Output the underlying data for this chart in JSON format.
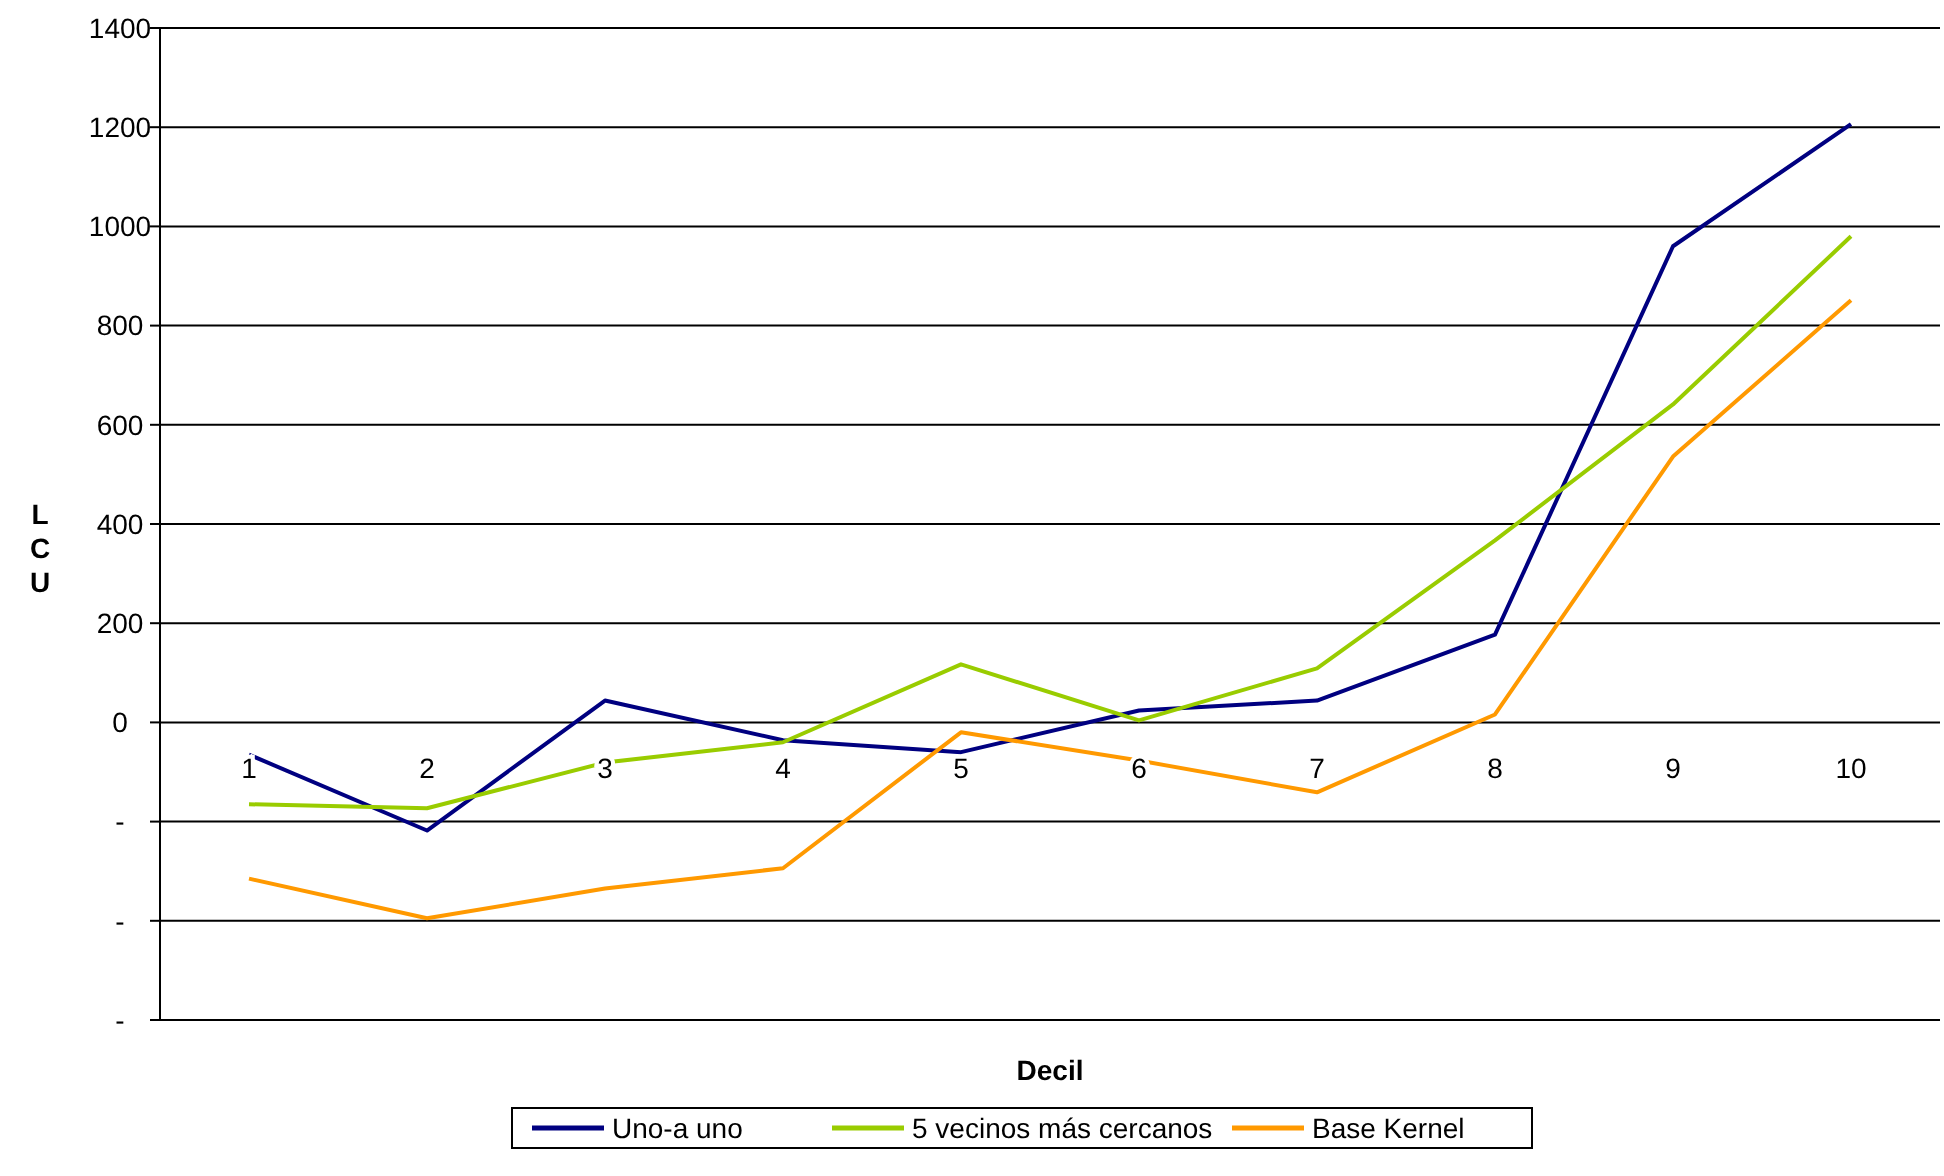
{
  "chart_data": {
    "type": "line",
    "xlabel": "Decil",
    "ylabel": "LCU",
    "categories": [
      "1",
      "2",
      "3",
      "4",
      "5",
      "6",
      "7",
      "8",
      "9",
      "10"
    ],
    "series": [
      {
        "name": "Uno-a uno",
        "color": "#000080",
        "values": [
          -65,
          -218,
          44,
          -36,
          -60,
          24,
          44,
          177,
          960,
          1206
        ]
      },
      {
        "name": "5 vecinos más cercanos",
        "color": "#99cc00",
        "values": [
          -165,
          -173,
          -81,
          -40,
          117,
          4,
          109,
          367,
          641,
          980
        ]
      },
      {
        "name": "Base Kernel",
        "color": "#ff9900",
        "values": [
          -315,
          -395,
          -335,
          -294,
          -20,
          -77,
          -141,
          16,
          536,
          851
        ]
      }
    ],
    "ylim": [
      -600,
      1400
    ],
    "yticks": [
      {
        "value": -600,
        "label": "-"
      },
      {
        "value": -400,
        "label": "-"
      },
      {
        "value": -200,
        "label": "-"
      },
      0,
      200,
      400,
      600,
      800,
      1000,
      1200,
      1400
    ],
    "grid": "y",
    "legend": "bottom",
    "marker": "none",
    "line_style": "solid"
  }
}
